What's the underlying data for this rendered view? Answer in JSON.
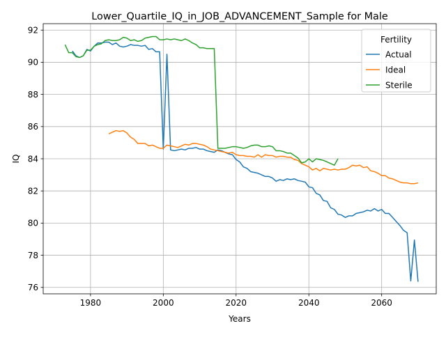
{
  "chart_data": {
    "type": "line",
    "title": "Lower_Quartile_IQ_in_JOB_ADVANCEMENT_Sample for Male",
    "xlabel": "Years",
    "ylabel": "IQ",
    "xlim": [
      1967,
      2075
    ],
    "ylim": [
      75.6,
      92.4
    ],
    "xticks": [
      1980,
      2000,
      2020,
      2040,
      2060
    ],
    "yticks": [
      76,
      78,
      80,
      82,
      84,
      86,
      88,
      90,
      92
    ],
    "grid": true,
    "legend": {
      "title": "Fertility",
      "placement": "top-right"
    },
    "series": [
      {
        "name": "Actual",
        "color": "#1f77b4",
        "points": [
          [
            1975,
            90.7
          ],
          [
            1976,
            90.4
          ],
          [
            1977,
            90.3
          ],
          [
            1978,
            90.4
          ],
          [
            1979,
            90.8
          ],
          [
            1980,
            90.7
          ],
          [
            1981,
            91.0
          ],
          [
            1982,
            91.2
          ],
          [
            1983,
            91.2
          ],
          [
            1984,
            91.25
          ],
          [
            1985,
            91.25
          ],
          [
            1986,
            91.1
          ],
          [
            1987,
            91.2
          ],
          [
            1988,
            91.0
          ],
          [
            1989,
            90.95
          ],
          [
            1990,
            91.0
          ],
          [
            1991,
            91.1
          ],
          [
            1992,
            91.05
          ],
          [
            1993,
            91.05
          ],
          [
            1994,
            91.0
          ],
          [
            1995,
            91.05
          ],
          [
            1996,
            90.8
          ],
          [
            1997,
            90.85
          ],
          [
            1998,
            90.65
          ],
          [
            1999,
            90.65
          ],
          [
            2000,
            84.6
          ],
          [
            2001,
            90.5
          ],
          [
            2002,
            84.55
          ],
          [
            2003,
            84.5
          ],
          [
            2004,
            84.55
          ],
          [
            2005,
            84.6
          ],
          [
            2006,
            84.55
          ],
          [
            2007,
            84.65
          ],
          [
            2008,
            84.65
          ],
          [
            2009,
            84.7
          ],
          [
            2010,
            84.6
          ],
          [
            2011,
            84.6
          ],
          [
            2012,
            84.5
          ],
          [
            2013,
            84.45
          ],
          [
            2014,
            84.4
          ],
          [
            2015,
            84.55
          ],
          [
            2016,
            84.5
          ],
          [
            2017,
            84.4
          ],
          [
            2018,
            84.3
          ],
          [
            2019,
            84.25
          ],
          [
            2020,
            83.95
          ],
          [
            2021,
            83.8
          ],
          [
            2022,
            83.5
          ],
          [
            2023,
            83.4
          ],
          [
            2024,
            83.2
          ],
          [
            2025,
            83.15
          ],
          [
            2026,
            83.1
          ],
          [
            2027,
            83.0
          ],
          [
            2028,
            82.9
          ],
          [
            2029,
            82.9
          ],
          [
            2030,
            82.8
          ],
          [
            2031,
            82.6
          ],
          [
            2032,
            82.7
          ],
          [
            2033,
            82.65
          ],
          [
            2034,
            82.75
          ],
          [
            2035,
            82.7
          ],
          [
            2036,
            82.75
          ],
          [
            2037,
            82.65
          ],
          [
            2038,
            82.6
          ],
          [
            2039,
            82.55
          ],
          [
            2040,
            82.25
          ],
          [
            2041,
            82.2
          ],
          [
            2042,
            81.85
          ],
          [
            2043,
            81.75
          ],
          [
            2044,
            81.4
          ],
          [
            2045,
            81.35
          ],
          [
            2046,
            80.95
          ],
          [
            2047,
            80.85
          ],
          [
            2048,
            80.55
          ],
          [
            2049,
            80.5
          ],
          [
            2050,
            80.35
          ],
          [
            2051,
            80.45
          ],
          [
            2052,
            80.45
          ],
          [
            2053,
            80.6
          ],
          [
            2054,
            80.65
          ],
          [
            2055,
            80.7
          ],
          [
            2056,
            80.8
          ],
          [
            2057,
            80.75
          ],
          [
            2058,
            80.9
          ],
          [
            2059,
            80.75
          ],
          [
            2060,
            80.85
          ],
          [
            2061,
            80.6
          ],
          [
            2062,
            80.6
          ],
          [
            2063,
            80.35
          ],
          [
            2064,
            80.1
          ],
          [
            2065,
            79.85
          ],
          [
            2066,
            79.55
          ],
          [
            2067,
            79.4
          ],
          [
            2068,
            76.4
          ],
          [
            2069,
            78.95
          ],
          [
            2070,
            76.35
          ]
        ]
      },
      {
        "name": "Ideal",
        "color": "#ff7f0e",
        "points": [
          [
            1985,
            85.55
          ],
          [
            1986,
            85.65
          ],
          [
            1987,
            85.75
          ],
          [
            1988,
            85.7
          ],
          [
            1989,
            85.75
          ],
          [
            1990,
            85.6
          ],
          [
            1991,
            85.35
          ],
          [
            1992,
            85.2
          ],
          [
            1993,
            84.95
          ],
          [
            1994,
            84.95
          ],
          [
            1995,
            84.95
          ],
          [
            1996,
            84.8
          ],
          [
            1997,
            84.85
          ],
          [
            1998,
            84.75
          ],
          [
            1999,
            84.65
          ],
          [
            2000,
            84.65
          ],
          [
            2001,
            84.85
          ],
          [
            2002,
            84.8
          ],
          [
            2003,
            84.75
          ],
          [
            2004,
            84.7
          ],
          [
            2005,
            84.8
          ],
          [
            2006,
            84.9
          ],
          [
            2007,
            84.85
          ],
          [
            2008,
            84.95
          ],
          [
            2009,
            84.95
          ],
          [
            2010,
            84.9
          ],
          [
            2011,
            84.85
          ],
          [
            2012,
            84.75
          ],
          [
            2013,
            84.6
          ],
          [
            2014,
            84.55
          ],
          [
            2015,
            84.5
          ],
          [
            2016,
            84.45
          ],
          [
            2017,
            84.4
          ],
          [
            2018,
            84.35
          ],
          [
            2019,
            84.4
          ],
          [
            2020,
            84.25
          ],
          [
            2021,
            84.2
          ],
          [
            2022,
            84.2
          ],
          [
            2023,
            84.15
          ],
          [
            2024,
            84.15
          ],
          [
            2025,
            84.1
          ],
          [
            2026,
            84.25
          ],
          [
            2027,
            84.1
          ],
          [
            2028,
            84.25
          ],
          [
            2029,
            84.2
          ],
          [
            2030,
            84.2
          ],
          [
            2031,
            84.1
          ],
          [
            2032,
            84.15
          ],
          [
            2033,
            84.15
          ],
          [
            2034,
            84.1
          ],
          [
            2035,
            84.1
          ],
          [
            2036,
            83.95
          ],
          [
            2037,
            83.9
          ],
          [
            2038,
            83.7
          ],
          [
            2039,
            83.6
          ],
          [
            2040,
            83.5
          ],
          [
            2041,
            83.3
          ],
          [
            2042,
            83.4
          ],
          [
            2043,
            83.25
          ],
          [
            2044,
            83.4
          ],
          [
            2045,
            83.35
          ],
          [
            2046,
            83.3
          ],
          [
            2047,
            83.35
          ],
          [
            2048,
            83.3
          ],
          [
            2049,
            83.35
          ],
          [
            2050,
            83.35
          ],
          [
            2051,
            83.45
          ],
          [
            2052,
            83.6
          ],
          [
            2053,
            83.55
          ],
          [
            2054,
            83.6
          ],
          [
            2055,
            83.45
          ],
          [
            2056,
            83.5
          ],
          [
            2057,
            83.25
          ],
          [
            2058,
            83.2
          ],
          [
            2059,
            83.1
          ],
          [
            2060,
            82.95
          ],
          [
            2061,
            82.95
          ],
          [
            2062,
            82.8
          ],
          [
            2063,
            82.75
          ],
          [
            2064,
            82.65
          ],
          [
            2065,
            82.55
          ],
          [
            2066,
            82.5
          ],
          [
            2067,
            82.5
          ],
          [
            2068,
            82.45
          ],
          [
            2069,
            82.45
          ],
          [
            2070,
            82.5
          ]
        ]
      },
      {
        "name": "Sterile",
        "color": "#2ca02c",
        "points": [
          [
            1973,
            91.1
          ],
          [
            1974,
            90.6
          ],
          [
            1975,
            90.6
          ],
          [
            1976,
            90.35
          ],
          [
            1977,
            90.3
          ],
          [
            1978,
            90.4
          ],
          [
            1979,
            90.75
          ],
          [
            1980,
            90.75
          ],
          [
            1981,
            91.0
          ],
          [
            1982,
            91.1
          ],
          [
            1983,
            91.15
          ],
          [
            1984,
            91.35
          ],
          [
            1985,
            91.4
          ],
          [
            1986,
            91.35
          ],
          [
            1987,
            91.35
          ],
          [
            1988,
            91.4
          ],
          [
            1989,
            91.55
          ],
          [
            1990,
            91.5
          ],
          [
            1991,
            91.35
          ],
          [
            1992,
            91.4
          ],
          [
            1993,
            91.3
          ],
          [
            1994,
            91.35
          ],
          [
            1995,
            91.5
          ],
          [
            1996,
            91.55
          ],
          [
            1997,
            91.6
          ],
          [
            1998,
            91.6
          ],
          [
            1999,
            91.4
          ],
          [
            2000,
            91.4
          ],
          [
            2001,
            91.45
          ],
          [
            2002,
            91.4
          ],
          [
            2003,
            91.45
          ],
          [
            2004,
            91.4
          ],
          [
            2005,
            91.35
          ],
          [
            2006,
            91.45
          ],
          [
            2007,
            91.35
          ],
          [
            2008,
            91.2
          ],
          [
            2009,
            91.1
          ],
          [
            2010,
            90.9
          ],
          [
            2011,
            90.9
          ],
          [
            2012,
            90.85
          ],
          [
            2013,
            90.85
          ],
          [
            2014,
            90.85
          ],
          [
            2015,
            84.65
          ],
          [
            2016,
            84.65
          ],
          [
            2017,
            84.65
          ],
          [
            2018,
            84.7
          ],
          [
            2019,
            84.75
          ],
          [
            2020,
            84.75
          ],
          [
            2021,
            84.7
          ],
          [
            2022,
            84.65
          ],
          [
            2023,
            84.7
          ],
          [
            2024,
            84.8
          ],
          [
            2025,
            84.85
          ],
          [
            2026,
            84.85
          ],
          [
            2027,
            84.75
          ],
          [
            2028,
            84.75
          ],
          [
            2029,
            84.8
          ],
          [
            2030,
            84.75
          ],
          [
            2031,
            84.5
          ],
          [
            2032,
            84.5
          ],
          [
            2033,
            84.45
          ],
          [
            2034,
            84.35
          ],
          [
            2035,
            84.35
          ],
          [
            2036,
            84.2
          ],
          [
            2037,
            84.05
          ],
          [
            2038,
            83.75
          ],
          [
            2039,
            83.8
          ],
          [
            2040,
            84.0
          ],
          [
            2041,
            83.8
          ],
          [
            2042,
            84.0
          ],
          [
            2043,
            83.95
          ],
          [
            2044,
            83.9
          ],
          [
            2045,
            83.8
          ],
          [
            2046,
            83.7
          ],
          [
            2047,
            83.6
          ],
          [
            2048,
            84.0
          ]
        ]
      }
    ]
  }
}
